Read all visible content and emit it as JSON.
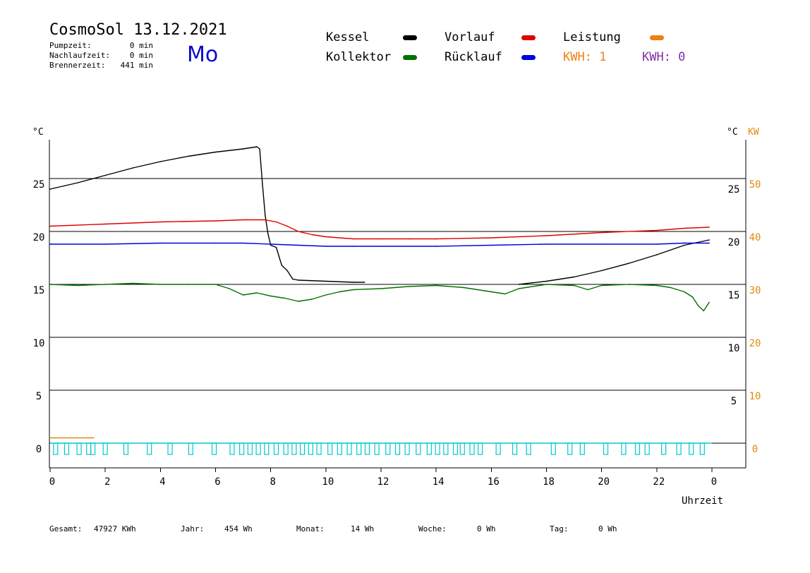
{
  "header": {
    "title": "CosmoSol 13.12.2021",
    "weekday": "Mo",
    "stats": [
      {
        "label": "Pumpzeit:",
        "value": "0 min"
      },
      {
        "label": "Nachlaufzeit:",
        "value": "0 min"
      },
      {
        "label": "Brennerzeit:",
        "value": "441 min"
      }
    ]
  },
  "legend": {
    "kessel": {
      "label": "Kessel",
      "color": "#000000"
    },
    "kollektor": {
      "label": "Kollektor",
      "color": "#007000"
    },
    "vorlauf": {
      "label": "Vorlauf",
      "color": "#e00000"
    },
    "ruecklauf": {
      "label": "Rücklauf",
      "color": "#0000e0"
    },
    "leistung": {
      "label": "Leistung",
      "color": "#f08010"
    },
    "kwh1": {
      "label": "KWH: 1",
      "color": "#f08010"
    },
    "kwh2": {
      "label": "KWH: 0",
      "color": "#8030a0"
    }
  },
  "footer": {
    "gesamt_label": "Gesamt:",
    "gesamt_value": "47927 KWh",
    "jahr_label": "Jahr:",
    "jahr_value": "454 Wh",
    "monat_label": "Monat:",
    "monat_value": "14 Wh",
    "woche_label": "Woche:",
    "woche_value": "0 Wh",
    "tag_label": "Tag:",
    "tag_value": "0 Wh"
  },
  "chart_data": {
    "type": "line",
    "xlabel": "Uhrzeit",
    "x_ticks": [
      "0",
      "2",
      "4",
      "6",
      "8",
      "10",
      "12",
      "14",
      "16",
      "18",
      "20",
      "22",
      "0"
    ],
    "xlim": [
      0,
      24
    ],
    "ylabel_left": "°C",
    "ylabel_right_temp": "°C",
    "ylabel_right_power": "KW",
    "y_ticks_left": [
      "0",
      "5",
      "10",
      "15",
      "20",
      "25"
    ],
    "y_ticks_right_temp": [
      "5",
      "10",
      "15",
      "20",
      "25"
    ],
    "y_ticks_right_power": [
      "0",
      "10",
      "20",
      "30",
      "40",
      "50"
    ],
    "ylim": [
      -2,
      28.5
    ],
    "grid": true,
    "gridlines_y": [
      0,
      5,
      10,
      15,
      20,
      25
    ],
    "series": [
      {
        "name": "Kessel",
        "color": "#000000",
        "x": [
          0,
          1,
          2,
          3,
          4,
          5,
          6,
          7,
          7.5,
          7.6,
          7.7,
          7.8,
          7.9,
          8.0,
          8.2,
          8.4,
          8.6,
          8.8,
          9.0,
          10.0,
          11.0,
          11.4
        ],
        "y": [
          24,
          24.6,
          25.3,
          26,
          26.6,
          27.1,
          27.5,
          27.8,
          28.0,
          27.8,
          24.5,
          21.5,
          19.8,
          18.7,
          18.5,
          16.8,
          16.3,
          15.5,
          15.4,
          15.3,
          15.2,
          15.2
        ]
      },
      {
        "name": "Kessel",
        "color": "#000000",
        "x": [
          17.0,
          18.0,
          19.0,
          20.0,
          21.0,
          22.0,
          23.0,
          23.9
        ],
        "y": [
          15.0,
          15.3,
          15.7,
          16.3,
          17.0,
          17.8,
          18.7,
          19.2
        ]
      },
      {
        "name": "Vorlauf",
        "color": "#e00000",
        "x": [
          0,
          2,
          4,
          6,
          7,
          7.8,
          8.2,
          8.6,
          9.0,
          9.5,
          10,
          11,
          12,
          13,
          14,
          16,
          18,
          20,
          22,
          23,
          23.9
        ],
        "y": [
          20.5,
          20.7,
          20.9,
          21.0,
          21.1,
          21.1,
          20.9,
          20.5,
          20.0,
          19.7,
          19.5,
          19.3,
          19.3,
          19.3,
          19.3,
          19.4,
          19.6,
          19.9,
          20.1,
          20.3,
          20.4
        ]
      },
      {
        "name": "Rücklauf",
        "color": "#0000e0",
        "x": [
          0,
          2,
          4,
          6,
          7,
          8,
          9,
          10,
          11,
          12,
          14,
          16,
          18,
          20,
          22,
          23,
          23.9
        ],
        "y": [
          18.8,
          18.8,
          18.9,
          18.9,
          18.9,
          18.8,
          18.7,
          18.6,
          18.6,
          18.6,
          18.6,
          18.7,
          18.8,
          18.8,
          18.8,
          18.9,
          18.9
        ]
      },
      {
        "name": "Kollektor",
        "color": "#007000",
        "x": [
          0,
          1,
          2,
          3,
          4,
          5,
          6,
          6.5,
          7,
          7.5,
          8,
          8.5,
          9,
          9.5,
          10,
          10.5,
          11,
          12,
          13,
          14,
          15,
          16,
          16.5,
          17,
          18,
          19,
          19.5,
          20,
          21,
          22,
          22.5,
          23,
          23.3,
          23.5,
          23.7,
          23.9
        ],
        "y": [
          15.0,
          14.9,
          15.0,
          15.1,
          15.0,
          15.0,
          15.0,
          14.6,
          14.0,
          14.2,
          13.9,
          13.7,
          13.4,
          13.6,
          14.0,
          14.3,
          14.5,
          14.6,
          14.8,
          14.9,
          14.7,
          14.3,
          14.1,
          14.6,
          15.0,
          14.9,
          14.5,
          14.9,
          15.0,
          14.9,
          14.7,
          14.3,
          13.8,
          13.0,
          12.5,
          13.3
        ]
      }
    ],
    "power": {
      "name": "Leistung",
      "color": "#f08010",
      "x": [
        0,
        1.6
      ],
      "y": [
        0.5,
        0.5
      ]
    },
    "pump_pulses": {
      "color": "#00c8d0",
      "x": [
        0.2,
        0.6,
        1.05,
        1.4,
        1.55,
        2.0,
        2.75,
        3.6,
        4.35,
        5.1,
        5.95,
        6.6,
        6.95,
        7.25,
        7.55,
        7.85,
        8.2,
        8.55,
        8.85,
        9.15,
        9.45,
        9.75,
        10.15,
        10.5,
        10.85,
        11.2,
        11.5,
        11.85,
        12.25,
        12.6,
        12.95,
        13.35,
        13.75,
        14.05,
        14.35,
        14.7,
        14.95,
        15.3,
        15.6,
        16.25,
        16.85,
        17.35,
        18.25,
        18.85,
        19.3,
        20.15,
        20.8,
        21.3,
        21.65,
        22.25,
        22.8,
        23.25,
        23.65
      ]
    }
  }
}
